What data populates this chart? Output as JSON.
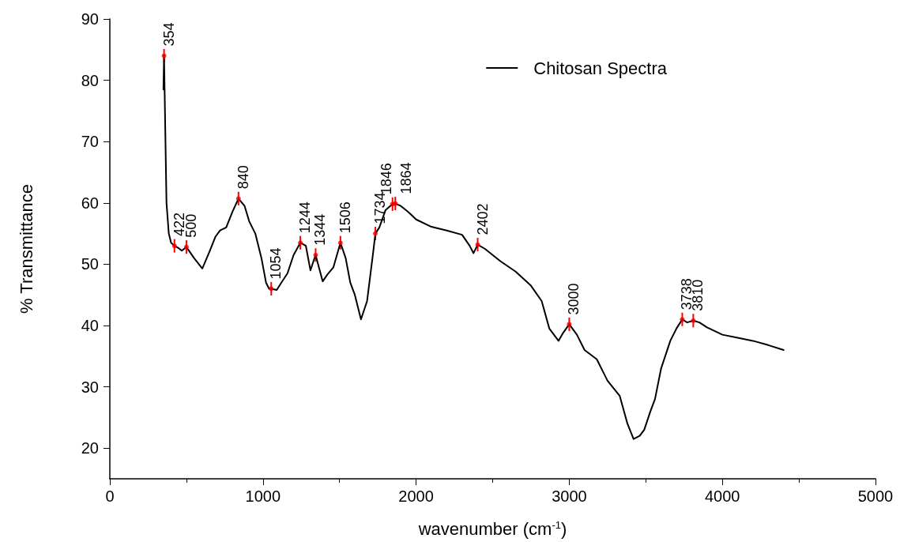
{
  "chart_data": {
    "type": "line",
    "xlabel": "wavenumber (cm$^{-1}$)",
    "ylabel": "% Transmittance",
    "xlim": [
      0,
      5000
    ],
    "xticks": [
      0,
      1000,
      2000,
      3000,
      4000,
      5000
    ],
    "ylim": [
      15,
      90
    ],
    "yticks": [
      20,
      30,
      40,
      50,
      60,
      70,
      80,
      90
    ],
    "grid": false,
    "legend": "top right",
    "marker": "none",
    "line_style": "solid",
    "series": [
      {
        "name": "Chitosan Spectra",
        "color": "#000000",
        "x": [
          350,
          354,
          360,
          370,
          385,
          400,
          422,
          450,
          470,
          500,
          550,
          604,
          650,
          690,
          720,
          760,
          800,
          840,
          880,
          910,
          950,
          990,
          1020,
          1040,
          1054,
          1090,
          1120,
          1160,
          1200,
          1244,
          1280,
          1310,
          1330,
          1344,
          1360,
          1390,
          1420,
          1460,
          1506,
          1540,
          1570,
          1600,
          1640,
          1680,
          1720,
          1734,
          1760,
          1800,
          1846,
          1864,
          1900,
          1950,
          2000,
          2100,
          2200,
          2300,
          2350,
          2375,
          2402,
          2450,
          2550,
          2650,
          2750,
          2820,
          2870,
          2930,
          2960,
          3000,
          3050,
          3100,
          3180,
          3250,
          3330,
          3380,
          3420,
          3460,
          3490,
          3530,
          3560,
          3600,
          3660,
          3700,
          3738,
          3770,
          3810,
          3850,
          3900,
          4000,
          4100,
          4200,
          4300,
          4400
        ],
        "values": [
          78.5,
          84,
          75,
          60,
          55,
          53.5,
          53,
          52.6,
          52.2,
          52.8,
          51,
          49.3,
          52,
          54.5,
          55.5,
          56,
          58.5,
          60.7,
          59.5,
          57,
          55,
          51,
          47,
          46,
          46,
          45.8,
          47,
          48.5,
          51.5,
          53.5,
          53,
          49,
          50.5,
          51.5,
          50,
          47.2,
          48.3,
          49.5,
          53.5,
          51,
          47,
          45,
          41,
          44,
          52,
          55,
          56,
          58.8,
          59.8,
          59.9,
          59.5,
          58.5,
          57.3,
          56.1,
          55.5,
          54.8,
          53,
          51.8,
          53.2,
          52.5,
          50.5,
          48.8,
          46.5,
          44,
          39.5,
          37.5,
          38.8,
          40.2,
          38.5,
          36,
          34.5,
          31,
          28.5,
          24,
          21.5,
          22,
          23,
          26,
          28,
          33,
          37.5,
          39.5,
          41,
          40.5,
          40.8,
          40.5,
          39.7,
          38.5,
          38,
          37.5,
          36.8,
          36
        ]
      },
      {
        "type": "scatter",
        "color": "#ff0000",
        "x": [
          354,
          422,
          500,
          840,
          1054,
          1244,
          1344,
          1506,
          1734,
          1846,
          1864,
          2402,
          3000,
          3738,
          3810
        ],
        "values": [
          84,
          53,
          52.8,
          60.7,
          46,
          53.5,
          51.5,
          53.5,
          55,
          59.8,
          59.9,
          53.2,
          40.2,
          41,
          40.8
        ],
        "errors": [
          1.1,
          1.1,
          1.1,
          1.1,
          1.1,
          1.1,
          1.1,
          1.1,
          1.1,
          1.1,
          1.1,
          1.1,
          1.1,
          1.1,
          1.1
        ]
      }
    ],
    "annotations": [
      {
        "text": "354",
        "x": 354,
        "y": 84
      },
      {
        "text": "422",
        "x": 422,
        "y": 53
      },
      {
        "text": "500",
        "x": 500,
        "y": 52.8
      },
      {
        "text": "840",
        "x": 840,
        "y": 60.7
      },
      {
        "text": "1054",
        "x": 1054,
        "y": 46
      },
      {
        "text": "1244",
        "x": 1244,
        "y": 53.5
      },
      {
        "text": "1344",
        "x": 1344,
        "y": 51.5
      },
      {
        "text": "1506",
        "x": 1506,
        "y": 53.5
      },
      {
        "text": "1734",
        "x": 1734,
        "y": 55
      },
      {
        "text": "1846",
        "x": 1846,
        "y": 59.8
      },
      {
        "text": "1864",
        "x": 1864,
        "y": 59.9
      },
      {
        "text": "2402",
        "x": 2402,
        "y": 53.2
      },
      {
        "text": "3000",
        "x": 3000,
        "y": 40.2
      },
      {
        "text": "3738",
        "x": 3738,
        "y": 41
      },
      {
        "text": "3810",
        "x": 3810,
        "y": 40.8
      }
    ]
  }
}
